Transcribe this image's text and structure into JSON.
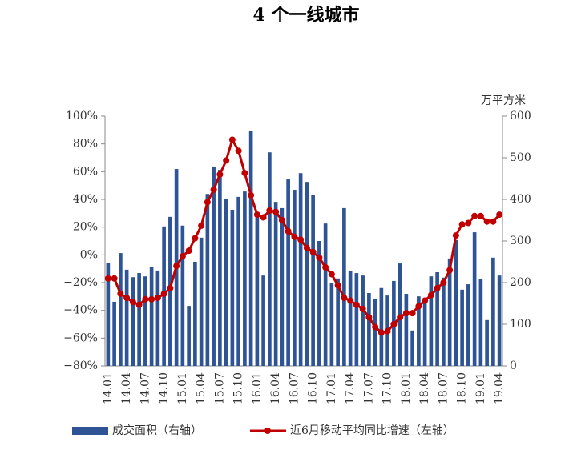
{
  "chart_data": {
    "type": "bar-line",
    "title": "4 个一线城市",
    "y2_label": "万平方米",
    "categories": [
      "14.01",
      null,
      null,
      "14.04",
      null,
      null,
      "14.07",
      null,
      null,
      "14.10",
      null,
      null,
      "15.01",
      null,
      null,
      "15.04",
      null,
      null,
      "15.07",
      null,
      null,
      "15.10",
      null,
      null,
      "16.01",
      null,
      null,
      "16.04",
      null,
      null,
      "16.07",
      null,
      null,
      "16.10",
      null,
      null,
      "17.01",
      null,
      null,
      "17.04",
      null,
      null,
      "17.07",
      null,
      null,
      "17.10",
      null,
      null,
      "18.01",
      null,
      null,
      "18.04",
      null,
      null,
      "18.07",
      null,
      null,
      "18.10",
      null,
      null,
      "19.01",
      null,
      null,
      "19.04"
    ],
    "series": [
      {
        "name": "成交面积（右轴）",
        "type": "bar",
        "axis": "y2",
        "color": "#2e5496",
        "values": [
          248,
          154,
          271,
          231,
          213,
          223,
          215,
          238,
          229,
          335,
          358,
          473,
          337,
          144,
          250,
          308,
          413,
          479,
          471,
          402,
          375,
          406,
          419,
          565,
          362,
          217,
          513,
          394,
          379,
          448,
          423,
          463,
          442,
          410,
          300,
          342,
          200,
          210,
          379,
          227,
          223,
          217,
          175,
          160,
          187,
          169,
          204,
          246,
          173,
          85,
          167,
          154,
          215,
          225,
          212,
          258,
          302,
          183,
          196,
          321,
          208,
          110,
          260,
          217
        ]
      },
      {
        "name": "近6月移动平均同比增速（左轴）",
        "type": "line",
        "axis": "y",
        "color": "#c00000",
        "values": [
          -17,
          -17,
          -28,
          -31,
          -34,
          -36,
          -32,
          -32,
          -31,
          -28,
          -24,
          -8,
          -1,
          3,
          12,
          21,
          38,
          47,
          58,
          68,
          83,
          75,
          59,
          43,
          29,
          27,
          32,
          31,
          25,
          17,
          13,
          11,
          5,
          2,
          -2,
          -9,
          -14,
          -22,
          -31,
          -33,
          -36,
          -39,
          -45,
          -52,
          -56,
          -55,
          -50,
          -45,
          -42,
          -42,
          -37,
          -33,
          -29,
          -24,
          -20,
          -11,
          14,
          22,
          23,
          28,
          28,
          24,
          24,
          29
        ]
      }
    ],
    "ylim": [
      -80,
      100
    ],
    "yticks": [
      {
        "value": -80,
        "label": "−80%"
      },
      {
        "value": -60,
        "label": "−60%"
      },
      {
        "value": -40,
        "label": "−40%"
      },
      {
        "value": -20,
        "label": "−20%"
      },
      {
        "value": 0,
        "label": "0%"
      },
      {
        "value": 20,
        "label": "20%"
      },
      {
        "value": 40,
        "label": "40%"
      },
      {
        "value": 60,
        "label": "60%"
      },
      {
        "value": 80,
        "label": "80%"
      },
      {
        "value": 100,
        "label": "100%"
      }
    ],
    "y2lim": [
      0,
      600
    ],
    "y2ticks": [
      0,
      100,
      200,
      300,
      400,
      500,
      600
    ],
    "grid": false,
    "legend": "bottom"
  }
}
